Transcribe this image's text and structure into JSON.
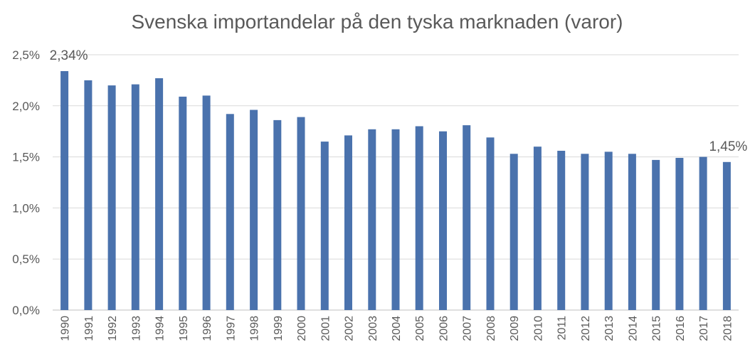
{
  "chart_data": {
    "type": "bar",
    "title": "Svenska importandelar på den tyska marknaden (varor)",
    "xlabel": "",
    "ylabel": "",
    "categories": [
      "1990",
      "1991",
      "1992",
      "1993",
      "1994",
      "1995",
      "1996",
      "1997",
      "1998",
      "1999",
      "2000",
      "2001",
      "2002",
      "2003",
      "2004",
      "2005",
      "2006",
      "2007",
      "2008",
      "2009",
      "2010",
      "2011",
      "2012",
      "2013",
      "2014",
      "2015",
      "2016",
      "2017",
      "2018"
    ],
    "values": [
      2.34,
      2.25,
      2.2,
      2.21,
      2.27,
      2.09,
      2.1,
      1.92,
      1.96,
      1.86,
      1.89,
      1.65,
      1.71,
      1.77,
      1.77,
      1.8,
      1.75,
      1.81,
      1.69,
      1.53,
      1.6,
      1.56,
      1.53,
      1.55,
      1.53,
      1.47,
      1.49,
      1.5,
      1.45
    ],
    "ylim": [
      0,
      2.5
    ],
    "yticks": [
      0,
      0.5,
      1.0,
      1.5,
      2.0,
      2.5
    ],
    "ytick_labels": [
      "0,0%",
      "0,5%",
      "1,0%",
      "1,5%",
      "2,0%",
      "2,5%"
    ],
    "data_labels": [
      {
        "category": "1990",
        "text": "2,34%"
      },
      {
        "category": "2018",
        "text": "1,45%"
      }
    ],
    "grid": true,
    "legend": "none",
    "bar_color": "#4a72ad"
  }
}
